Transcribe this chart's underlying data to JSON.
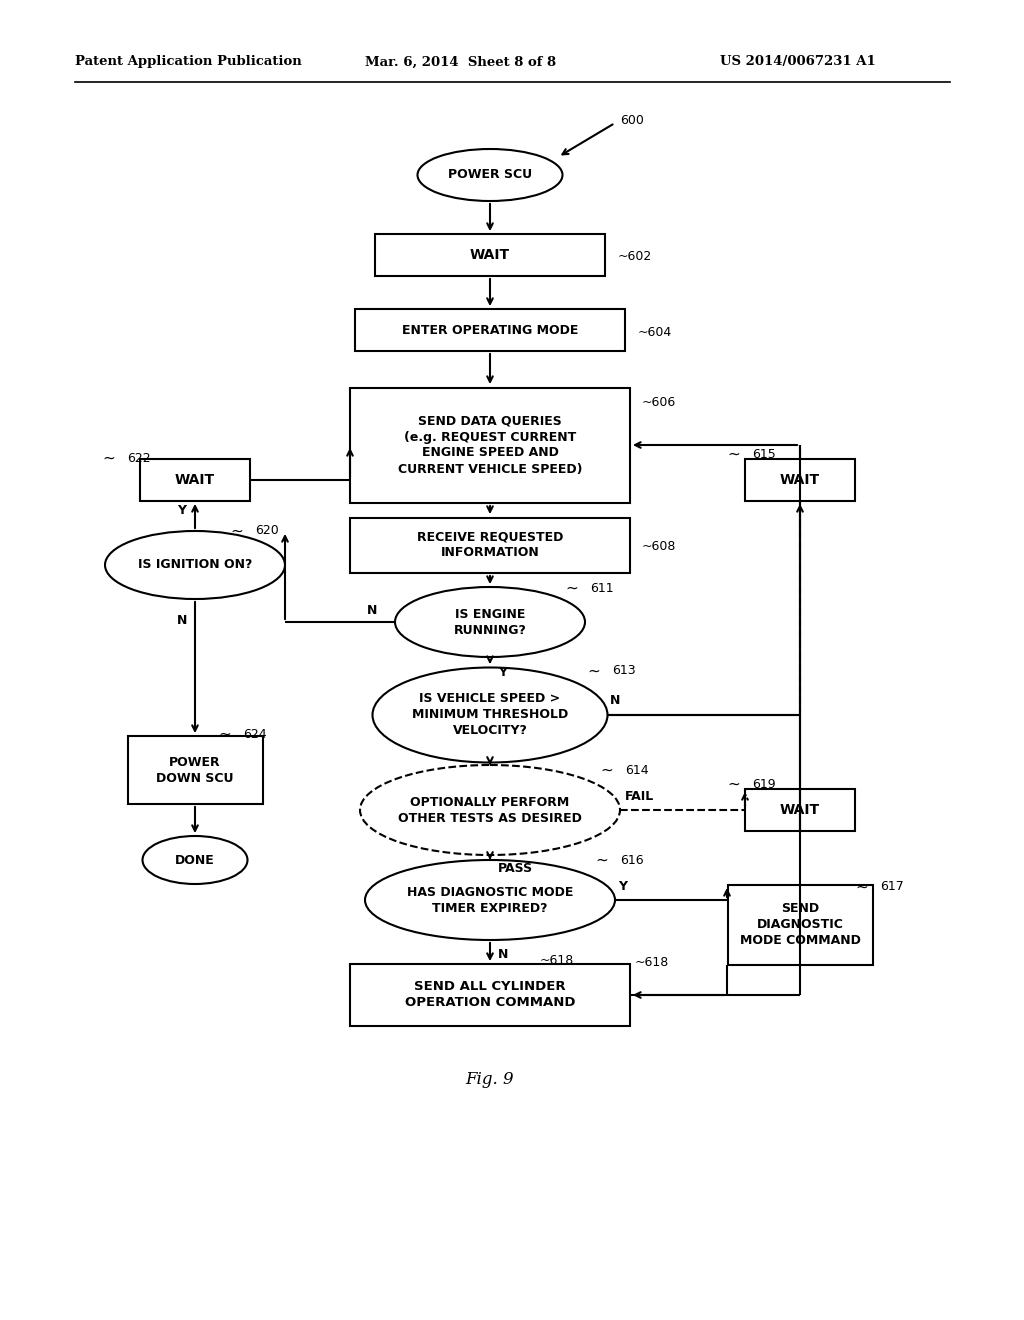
{
  "bg_color": "#ffffff",
  "header_left": "Patent Application Publication",
  "header_mid": "Mar. 6, 2014  Sheet 8 of 8",
  "header_right": "US 2014/0067231 A1",
  "footer_label": "Fig. 9"
}
